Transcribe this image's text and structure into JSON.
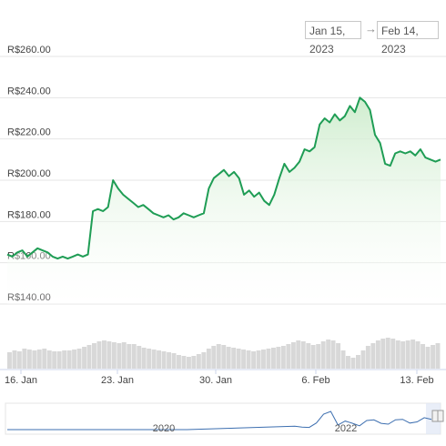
{
  "date_range": {
    "start": "Jan 15, 2023",
    "arrow": "→",
    "end": "Feb 14, 2023"
  },
  "colors": {
    "line": "#1f9d55",
    "area_top": "#cdeccc",
    "volume": "#d8d8d8",
    "navigator_line": "#3d6fb0"
  },
  "navigator": {
    "labels": [
      "2020",
      "2022"
    ]
  },
  "chart_data": {
    "type": "area",
    "title": "",
    "xlabel": "",
    "ylabel": "",
    "currency_prefix": "R$",
    "x_ticks": [
      "16. Jan",
      "23. Jan",
      "30. Jan",
      "6. Feb",
      "13. Feb"
    ],
    "y_ticks": [
      "R$140.00",
      "R$160.00",
      "R$180.00",
      "R$200.00",
      "R$220.00",
      "R$240.00",
      "R$260.00"
    ],
    "ylim": [
      140,
      260
    ],
    "grid": true,
    "series": [
      {
        "values": [
          164,
          163,
          165,
          166,
          163,
          165,
          167,
          166,
          165,
          163,
          162,
          163,
          162,
          163,
          164,
          163,
          164,
          185,
          186,
          185,
          187,
          200,
          196,
          193,
          191,
          189,
          187,
          188,
          186,
          184,
          183,
          182,
          183,
          181,
          182,
          184,
          183,
          182,
          183,
          184,
          196,
          201,
          203,
          205,
          202,
          204,
          201,
          193,
          195,
          192,
          194,
          190,
          188,
          193,
          201,
          208,
          204,
          206,
          209,
          215,
          214,
          216,
          227,
          230,
          228,
          232,
          229,
          231,
          236,
          233,
          240,
          238,
          234,
          222,
          218,
          208,
          207,
          213,
          214,
          213,
          214,
          212,
          215,
          211,
          210,
          209,
          210
        ]
      }
    ],
    "volume": [
      18,
      20,
      19,
      22,
      21,
      20,
      21,
      22,
      20,
      19,
      19,
      20,
      20,
      21,
      22,
      24,
      26,
      28,
      30,
      31,
      30,
      29,
      28,
      29,
      27,
      27,
      25,
      23,
      22,
      21,
      20,
      19,
      18,
      17,
      15,
      14,
      13,
      14,
      16,
      18,
      22,
      25,
      27,
      26,
      24,
      23,
      22,
      21,
      20,
      19,
      20,
      21,
      22,
      23,
      24,
      25,
      27,
      29,
      31,
      30,
      28,
      26,
      27,
      30,
      32,
      31,
      28,
      20,
      14,
      12,
      15,
      20,
      25,
      28,
      31,
      33,
      34,
      33,
      31,
      30,
      31,
      32,
      30,
      27,
      24,
      26,
      28
    ]
  }
}
